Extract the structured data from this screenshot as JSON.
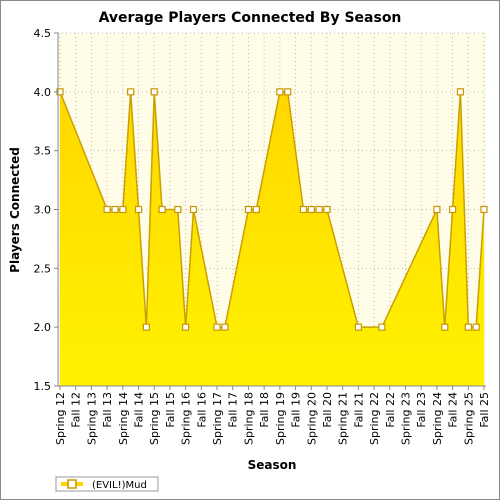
{
  "chart_data": {
    "type": "area",
    "title": "Average Players Connected By Season",
    "xlabel": "Season",
    "ylabel": "Players Connected",
    "ylim": [
      1.5,
      4.5
    ],
    "yticks": [
      "1.5",
      "2.0",
      "2.5",
      "3.0",
      "3.5",
      "4.0",
      "4.5"
    ],
    "grid": true,
    "legend_position": "bottom-left",
    "x_tick_labels": [
      "Spring 12",
      "Fall 12",
      "Spring 13",
      "Fall 13",
      "Spring 14",
      "Fall 14",
      "Spring 15",
      "Fall 15",
      "Spring 16",
      "Fall 16",
      "Spring 17",
      "Fall 17",
      "Spring 18",
      "Fall 18",
      "Spring 19",
      "Fall 19",
      "Spring 20",
      "Fall 20",
      "Spring 21",
      "Fall 21",
      "Spring 22",
      "Fall 22",
      "Spring 23",
      "Fall 23",
      "Spring 24",
      "Fall 24",
      "Spring 25",
      "Fall 25"
    ],
    "points": [
      {
        "x": 0,
        "y": 4.0
      },
      {
        "x": 6,
        "y": 3.0
      },
      {
        "x": 7,
        "y": 3.0
      },
      {
        "x": 8,
        "y": 3.0
      },
      {
        "x": 9,
        "y": 4.0
      },
      {
        "x": 10,
        "y": 3.0
      },
      {
        "x": 11,
        "y": 2.0
      },
      {
        "x": 12,
        "y": 4.0
      },
      {
        "x": 13,
        "y": 3.0
      },
      {
        "x": 15,
        "y": 3.0
      },
      {
        "x": 16,
        "y": 2.0
      },
      {
        "x": 17,
        "y": 3.0
      },
      {
        "x": 20,
        "y": 2.0
      },
      {
        "x": 21,
        "y": 2.0
      },
      {
        "x": 24,
        "y": 3.0
      },
      {
        "x": 25,
        "y": 3.0
      },
      {
        "x": 28,
        "y": 4.0
      },
      {
        "x": 29,
        "y": 4.0
      },
      {
        "x": 31,
        "y": 3.0
      },
      {
        "x": 32,
        "y": 3.0
      },
      {
        "x": 33,
        "y": 3.0
      },
      {
        "x": 34,
        "y": 3.0
      },
      {
        "x": 38,
        "y": 2.0
      },
      {
        "x": 41,
        "y": 2.0
      },
      {
        "x": 48,
        "y": 3.0
      },
      {
        "x": 49,
        "y": 2.0
      },
      {
        "x": 50,
        "y": 3.0
      },
      {
        "x": 51,
        "y": 4.0
      },
      {
        "x": 52,
        "y": 2.0
      },
      {
        "x": 53,
        "y": 2.0
      },
      {
        "x": 54,
        "y": 3.0
      }
    ],
    "series": [
      {
        "name": "(EVIL!)Mud",
        "fill_top": "#ffd700",
        "fill_bottom": "#fff200",
        "line": "#c8a000",
        "marker": "#c89600"
      }
    ],
    "plot_background": "#fffde8"
  }
}
